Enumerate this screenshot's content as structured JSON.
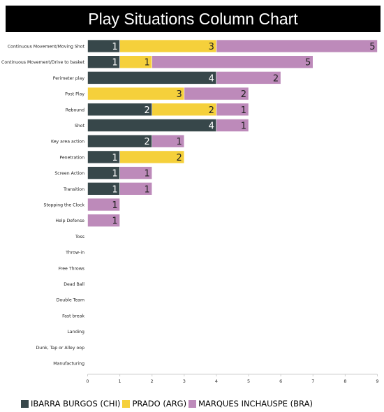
{
  "title": "Play Situations Column Chart",
  "colors": {
    "series_ibarra": "#37474a",
    "series_prado": "#f5d03b",
    "series_marques": "#bd8aba"
  },
  "chart_data": {
    "type": "bar",
    "orientation": "horizontal",
    "stacked": true,
    "title": "Play Situations Column Chart",
    "xlim": [
      0,
      9
    ],
    "xticks": [
      0,
      1,
      2,
      3,
      4,
      5,
      6,
      7,
      8,
      9
    ],
    "grid": false,
    "legend_position": "bottom",
    "categories": [
      "Continuous Movement/Moving Shot",
      "Continuous Movement/Drive to basket",
      "Perimeter play",
      "Post Play",
      "Rebound",
      "Shot",
      "Key area action",
      "Penetration",
      "Screen Action",
      "Transition",
      "Stopping the Clock",
      "Help Defense",
      "Toss",
      "Throw-in",
      "Free Throws",
      "Dead Ball",
      "Double Team",
      "Fast break",
      "Landing",
      "Dunk, Tap or Alley oop",
      "Manufacturing"
    ],
    "series": [
      {
        "name": "IBARRA BURGOS (CHI)",
        "color": "#37474a",
        "label_color": "#ffffff",
        "values": [
          1,
          1,
          4,
          0,
          2,
          4,
          2,
          1,
          1,
          1,
          0,
          0,
          0,
          0,
          0,
          0,
          0,
          0,
          0,
          0,
          0
        ]
      },
      {
        "name": "PRADO (ARG)",
        "color": "#f5d03b",
        "label_color": "#222222",
        "values": [
          3,
          1,
          0,
          3,
          2,
          0,
          0,
          2,
          0,
          0,
          0,
          0,
          0,
          0,
          0,
          0,
          0,
          0,
          0,
          0,
          0
        ]
      },
      {
        "name": "MARQUES INCHAUSPE (BRA)",
        "color": "#bd8aba",
        "label_color": "#222222",
        "values": [
          5,
          5,
          2,
          2,
          1,
          1,
          1,
          0,
          1,
          1,
          1,
          1,
          0,
          0,
          0,
          0,
          0,
          0,
          0,
          0,
          0
        ]
      }
    ]
  },
  "legend": [
    {
      "label": "IBARRA BURGOS (CHI)",
      "color": "#37474a"
    },
    {
      "label": "PRADO (ARG)",
      "color": "#f5d03b"
    },
    {
      "label": "MARQUES INCHAUSPE (BRA)",
      "color": "#bd8aba"
    }
  ]
}
